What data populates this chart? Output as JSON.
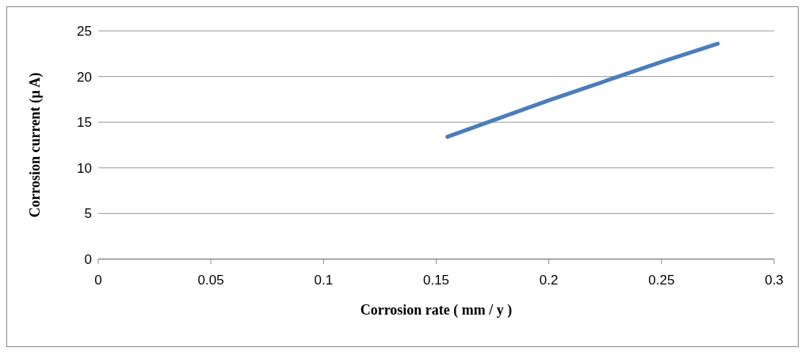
{
  "chart_data": {
    "type": "line",
    "xlabel": "Corrosion rate ( mm / y )",
    "ylabel": "Corrosion current (µ A)",
    "x": [
      0.155,
      0.2,
      0.25,
      0.275
    ],
    "series": [
      {
        "color": "#4a7ebb",
        "values": [
          13.4,
          17.4,
          21.6,
          23.6
        ]
      }
    ],
    "xlim": [
      0,
      0.3
    ],
    "xticks": [
      0,
      0.05,
      0.1,
      0.15,
      0.2,
      0.25,
      0.3
    ],
    "ylim": [
      0,
      25
    ],
    "yticks": [
      0,
      5,
      10,
      15,
      20,
      25
    ],
    "grid": "y",
    "marker": "none",
    "line_style": "solid",
    "legend": false
  }
}
